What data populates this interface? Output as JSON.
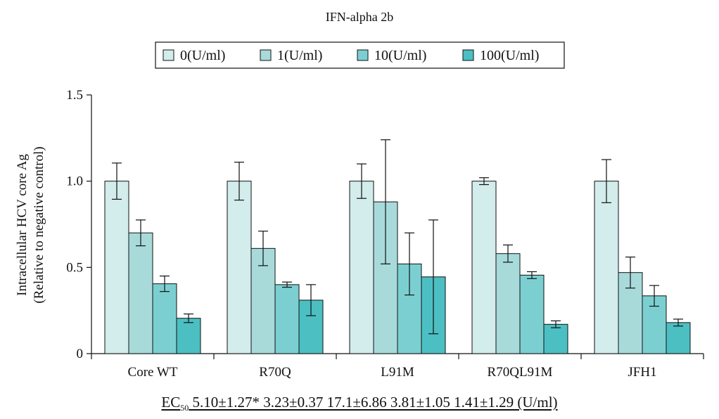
{
  "chart_data": {
    "type": "bar",
    "title": "IFN-alpha 2b",
    "ylabel": [
      "Intracellular HCV core Ag",
      "(Relative to negative control)"
    ],
    "xlabel": "",
    "ylim": [
      0,
      1.5
    ],
    "yticks": [
      {
        "value": 0,
        "label": "0"
      },
      {
        "value": 0.5,
        "label": "0.5"
      },
      {
        "value": 1.0,
        "label": "1.0"
      },
      {
        "value": 1.5,
        "label": "1.5"
      }
    ],
    "grid": false,
    "legend_position": "top-center",
    "categories": [
      "Core WT",
      "R70Q",
      "L91M",
      "R70QL91M",
      "JFH1"
    ],
    "series": [
      {
        "name": "0(U/ml)",
        "color": "#d3ecec",
        "values": [
          1.0,
          1.0,
          1.0,
          1.0,
          1.0
        ],
        "errors": [
          0.105,
          0.11,
          0.1,
          0.02,
          0.125
        ]
      },
      {
        "name": "1(U/ml)",
        "color": "#a8dada",
        "values": [
          0.7,
          0.61,
          0.88,
          0.58,
          0.47
        ],
        "errors": [
          0.075,
          0.1,
          0.36,
          0.05,
          0.09
        ]
      },
      {
        "name": "10(U/ml)",
        "color": "#7ccfd1",
        "values": [
          0.405,
          0.4,
          0.52,
          0.455,
          0.335
        ],
        "errors": [
          0.045,
          0.015,
          0.18,
          0.02,
          0.06
        ]
      },
      {
        "name": "100(U/ml)",
        "color": "#4cbfc3",
        "values": [
          0.205,
          0.31,
          0.445,
          0.17,
          0.18
        ],
        "errors": [
          0.025,
          0.09,
          0.33,
          0.02,
          0.02
        ]
      }
    ]
  },
  "ec50": {
    "label_main": "EC",
    "label_sub": "50",
    "values_text": "5.10±1.27* 3.23±0.37 17.1±6.86 3.81±1.05 1.41±1.29 (U/ml)"
  }
}
